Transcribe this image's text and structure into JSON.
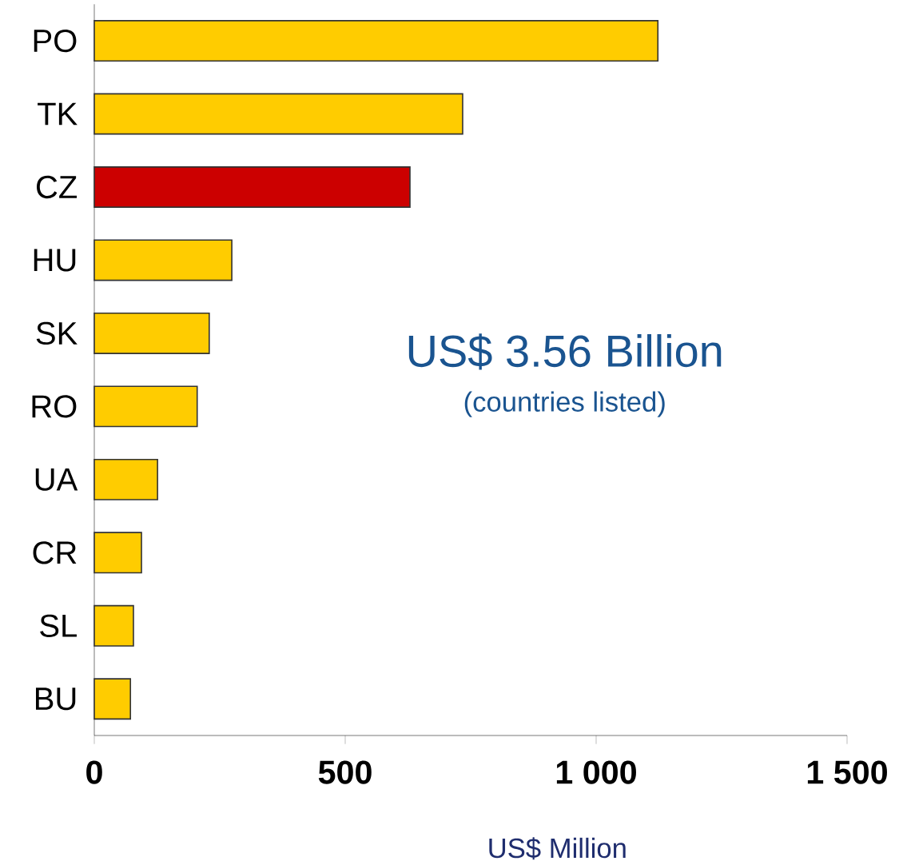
{
  "chart_data": {
    "type": "bar",
    "orientation": "horizontal",
    "xlabel": "US$ Million",
    "categories": [
      "PO",
      "TK",
      "CZ",
      "HU",
      "SK",
      "RO",
      "UA",
      "CR",
      "SL",
      "BU"
    ],
    "values": [
      1123,
      734,
      629,
      274,
      229,
      205,
      126,
      94,
      78,
      72
    ],
    "colors": [
      "#ffcc00",
      "#ffcc00",
      "#cc0000",
      "#ffcc00",
      "#ffcc00",
      "#ffcc00",
      "#ffcc00",
      "#ffcc00",
      "#ffcc00",
      "#ffcc00"
    ],
    "xlim": [
      0,
      1500
    ],
    "xticks": [
      0,
      500,
      {
        "value": 1000,
        "label": "1 000"
      },
      {
        "value": 1500,
        "label": "1 500"
      }
    ],
    "annotations": [
      "US$ 3.56 Billion",
      "(countries listed)"
    ]
  }
}
